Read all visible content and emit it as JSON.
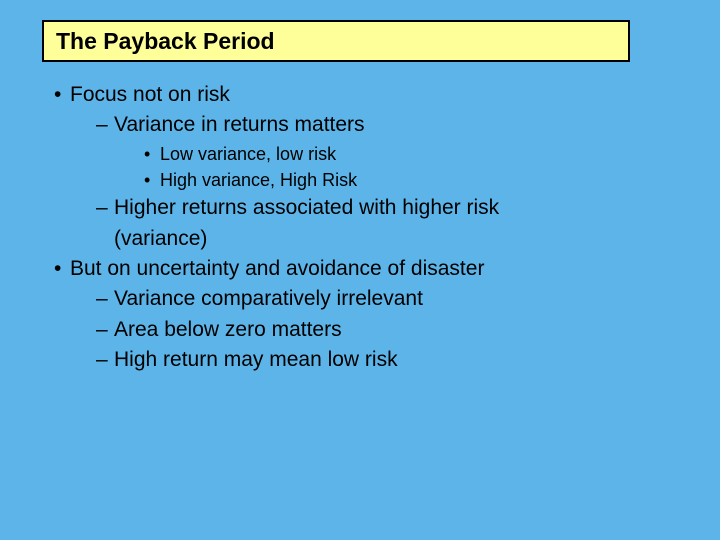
{
  "slide": {
    "background_color": "#5cb4e8",
    "title_box": {
      "text": "The Payback Period",
      "background_color": "#ffff99",
      "border_color": "#000000",
      "font_size": 23,
      "font_weight": "bold"
    },
    "font_family": "Comic Sans MS",
    "text_color": "#000000",
    "bullets": {
      "b1": "Focus not on risk",
      "b1_1": "Variance in returns matters",
      "b1_1_1": "Low variance, low risk",
      "b1_1_2": "High variance, High Risk",
      "b1_2_line1": "Higher returns associated with higher risk",
      "b1_2_line2": "(variance)",
      "b2": "But on uncertainty and avoidance of disaster",
      "b2_1": "Variance comparatively irrelevant",
      "b2_2": "Area below zero matters",
      "b2_3": "High return may mean low risk"
    },
    "body_font_size": 21,
    "sub_font_size": 18
  }
}
